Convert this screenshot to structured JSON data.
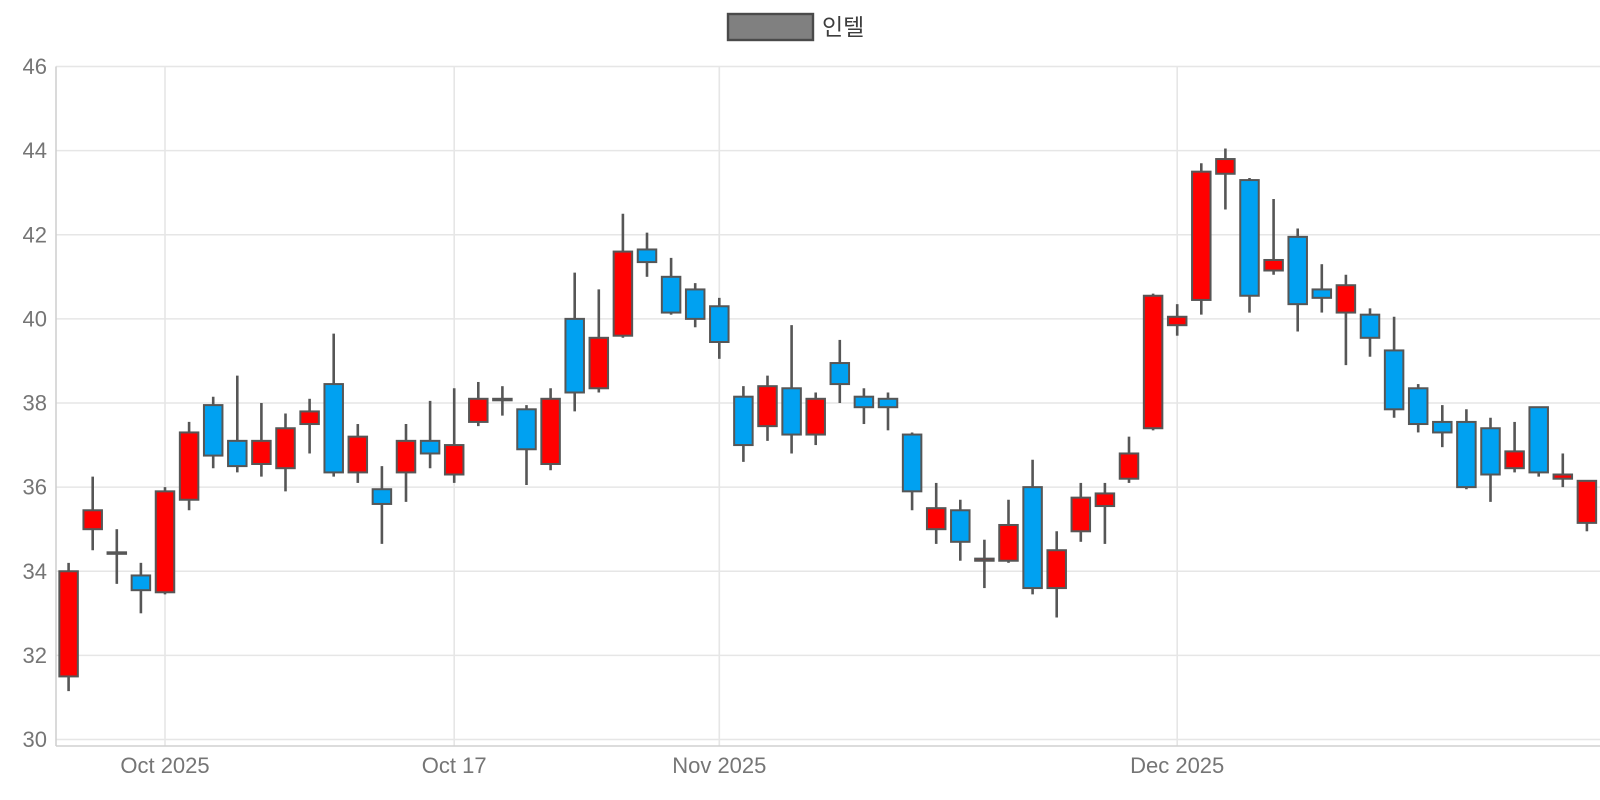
{
  "legend": {
    "label": "인텔",
    "swatch_fill": "#808080",
    "swatch_border": "#4a4a4a",
    "text_color": "#3d3d3d"
  },
  "colors": {
    "up": "#ff0000",
    "down": "#00a1f1",
    "outline": "#565656",
    "grid": "#e6e6e6",
    "axis_line": "#d0d0d0",
    "tick_label": "#757575",
    "background": "#ffffff"
  },
  "y_axis": {
    "tick_labels": [
      "30",
      "32",
      "34",
      "36",
      "38",
      "40",
      "42",
      "44",
      "46"
    ]
  },
  "x_axis": {
    "ticks": [
      {
        "candle_index": 4,
        "label": "Oct 2025"
      },
      {
        "candle_index": 16,
        "label": "Oct 17"
      },
      {
        "candle_index": 27,
        "label": "Nov 2025"
      },
      {
        "candle_index": 46,
        "label": "Dec 2025"
      }
    ]
  },
  "chart_data": {
    "type": "candlestick",
    "series_name": "인텔",
    "ylim": [
      30,
      46
    ],
    "y_tick_step": 2,
    "grid": true,
    "legend_position": "top-center",
    "up_color_meaning": "close >= open (red)",
    "down_color_meaning": "close < open (blue)",
    "ohlc": [
      [
        31.5,
        34.2,
        31.15,
        34.0
      ],
      [
        35.0,
        36.25,
        34.5,
        35.45
      ],
      [
        34.45,
        35.0,
        33.7,
        34.45
      ],
      [
        33.9,
        34.2,
        33.0,
        33.55
      ],
      [
        33.5,
        36.0,
        33.45,
        35.9
      ],
      [
        35.7,
        37.55,
        35.45,
        37.3
      ],
      [
        37.95,
        38.15,
        36.45,
        36.75
      ],
      [
        37.1,
        38.65,
        36.35,
        36.5
      ],
      [
        36.55,
        38.0,
        36.25,
        37.1
      ],
      [
        36.45,
        37.75,
        35.9,
        37.4
      ],
      [
        37.5,
        38.1,
        36.8,
        37.8
      ],
      [
        38.45,
        39.65,
        36.25,
        36.35
      ],
      [
        36.35,
        37.5,
        36.1,
        37.2
      ],
      [
        35.95,
        36.5,
        34.65,
        35.6
      ],
      [
        36.35,
        37.5,
        35.65,
        37.1
      ],
      [
        37.1,
        38.05,
        36.45,
        36.8
      ],
      [
        36.3,
        38.35,
        36.1,
        37.0
      ],
      [
        37.55,
        38.5,
        37.45,
        38.1
      ],
      [
        38.1,
        38.4,
        37.7,
        38.1
      ],
      [
        37.85,
        37.95,
        36.05,
        36.9
      ],
      [
        36.55,
        38.35,
        36.4,
        38.1
      ],
      [
        40.0,
        41.1,
        37.8,
        38.25
      ],
      [
        38.35,
        40.7,
        38.25,
        39.55
      ],
      [
        39.6,
        42.5,
        39.55,
        41.6
      ],
      [
        41.65,
        42.05,
        41.0,
        41.35
      ],
      [
        41.0,
        41.45,
        40.1,
        40.15
      ],
      [
        40.7,
        40.85,
        39.8,
        40.0
      ],
      [
        40.3,
        40.5,
        39.05,
        39.45
      ],
      [
        38.15,
        38.4,
        36.6,
        37.0
      ],
      [
        37.45,
        38.65,
        37.1,
        38.4
      ],
      [
        38.35,
        39.85,
        36.8,
        37.25
      ],
      [
        37.25,
        38.25,
        37.0,
        38.1
      ],
      [
        38.95,
        39.5,
        38.0,
        38.45
      ],
      [
        38.15,
        38.35,
        37.5,
        37.9
      ],
      [
        38.1,
        38.25,
        37.35,
        37.9
      ],
      [
        37.25,
        37.3,
        35.45,
        35.9
      ],
      [
        35.0,
        36.1,
        34.65,
        35.5
      ],
      [
        35.45,
        35.7,
        34.25,
        34.7
      ],
      [
        34.25,
        34.75,
        33.6,
        34.3
      ],
      [
        34.25,
        35.7,
        34.2,
        35.1
      ],
      [
        36.0,
        36.65,
        33.45,
        33.6
      ],
      [
        33.6,
        34.95,
        32.9,
        34.5
      ],
      [
        34.95,
        36.1,
        34.7,
        35.75
      ],
      [
        35.55,
        36.1,
        34.65,
        35.85
      ],
      [
        36.2,
        37.2,
        36.1,
        36.8
      ],
      [
        37.4,
        40.6,
        37.35,
        40.55
      ],
      [
        39.85,
        40.35,
        39.6,
        40.05
      ],
      [
        40.45,
        43.7,
        40.1,
        43.5
      ],
      [
        43.45,
        44.05,
        42.6,
        43.8
      ],
      [
        43.3,
        43.35,
        40.15,
        40.55
      ],
      [
        41.15,
        42.85,
        41.05,
        41.4
      ],
      [
        41.95,
        42.15,
        39.7,
        40.35
      ],
      [
        40.7,
        41.3,
        40.15,
        40.5
      ],
      [
        40.15,
        41.05,
        38.9,
        40.8
      ],
      [
        40.1,
        40.25,
        39.1,
        39.55
      ],
      [
        39.25,
        40.05,
        37.65,
        37.85
      ],
      [
        38.35,
        38.45,
        37.3,
        37.5
      ],
      [
        37.55,
        37.95,
        36.95,
        37.3
      ],
      [
        37.55,
        37.85,
        35.95,
        36.0
      ],
      [
        37.4,
        37.65,
        35.65,
        36.3
      ],
      [
        36.45,
        37.55,
        36.35,
        36.85
      ],
      [
        37.9,
        37.9,
        36.25,
        36.35
      ],
      [
        36.2,
        36.8,
        36.0,
        36.3
      ],
      [
        35.15,
        36.15,
        34.95,
        36.15
      ]
    ]
  }
}
